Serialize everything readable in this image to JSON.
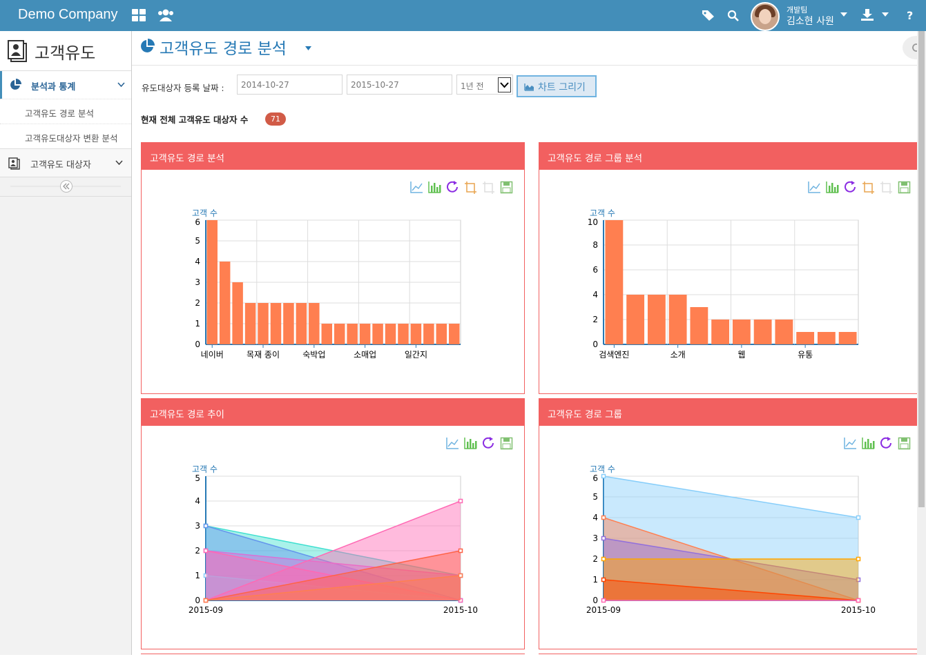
{
  "topbar": {
    "brand": "Demo Company",
    "user_team": "개발팀",
    "user_name": "김소현 사원"
  },
  "sidebar": {
    "title": "고객유도",
    "menu_main": "분석과 통계",
    "sub_items": [
      "고객유도 경로 분석",
      "고객유도대상자 변환 분석"
    ],
    "menu_2": "고객유도 대상자"
  },
  "main": {
    "page_title": "고객유도 경로 분석",
    "filter_label": "유도대상자 등록 날짜 :",
    "date_from": "2014-10-27",
    "date_to": "2015-10-27",
    "period": "1년 전",
    "draw_button": "차트 그리기",
    "count_label": "현재 전체 고객유도 대상자 수",
    "count_value": "71"
  },
  "panels": [
    {
      "title": "고객유도 경로 분석"
    },
    {
      "title": "고객유도 경로 그룹 분석"
    },
    {
      "title": "고객유도 경로 추이"
    },
    {
      "title": "고객유도 경로 그룹"
    }
  ],
  "chart_data": [
    {
      "type": "bar",
      "ylabel": "고객 수",
      "ylim": [
        0,
        6
      ],
      "yticks": [
        0,
        1,
        2,
        3,
        4,
        5,
        6
      ],
      "tick_labels": [
        "네이버",
        "목재 종이",
        "숙박업",
        "소매업",
        "일간지"
      ],
      "tick_label_at": [
        0,
        4,
        8,
        12,
        16
      ],
      "values": [
        6,
        4,
        3,
        2,
        2,
        2,
        2,
        2,
        2,
        1,
        1,
        1,
        1,
        1,
        1,
        1,
        1,
        1,
        1,
        1
      ],
      "color": "#ff7f50",
      "grid": true
    },
    {
      "type": "bar",
      "ylabel": "고객 수",
      "ylim": [
        0,
        10
      ],
      "yticks": [
        0,
        2,
        4,
        6,
        8,
        10
      ],
      "tick_labels": [
        "검색엔진",
        "소개",
        "웹",
        "유통"
      ],
      "tick_label_at": [
        0,
        3,
        6,
        9
      ],
      "values": [
        10,
        4,
        4,
        4,
        3,
        2,
        2,
        2,
        2,
        1,
        1,
        1
      ],
      "color": "#ff7f50",
      "grid": true
    },
    {
      "type": "area",
      "ylabel": "고객 수",
      "ylim": [
        0,
        5
      ],
      "yticks": [
        0,
        1,
        2,
        3,
        4,
        5
      ],
      "x": [
        "2015-09",
        "2015-10"
      ],
      "series": [
        {
          "values": [
            3,
            1
          ],
          "color": "#40e0d0"
        },
        {
          "values": [
            3,
            0
          ],
          "color": "#6495ed"
        },
        {
          "values": [
            2,
            1
          ],
          "color": "#da70d6"
        },
        {
          "values": [
            1,
            0
          ],
          "color": "#87cefa"
        },
        {
          "values": [
            2,
            0
          ],
          "color": "#ff69b4"
        },
        {
          "values": [
            0,
            4
          ],
          "color": "#ff69b4"
        },
        {
          "values": [
            0,
            2
          ],
          "color": "#ff6347"
        },
        {
          "values": [
            0,
            1
          ],
          "color": "#ff7f50"
        }
      ]
    },
    {
      "type": "area",
      "ylabel": "고객 수",
      "ylim": [
        0,
        6
      ],
      "yticks": [
        0,
        1,
        2,
        3,
        4,
        5,
        6
      ],
      "x": [
        "2015-09",
        "2015-10"
      ],
      "series": [
        {
          "values": [
            6,
            4
          ],
          "color": "#87cefa"
        },
        {
          "values": [
            4,
            0
          ],
          "color": "#ff7f50"
        },
        {
          "values": [
            3,
            1
          ],
          "color": "#9370db"
        },
        {
          "values": [
            2,
            2
          ],
          "color": "#ffa500"
        },
        {
          "values": [
            1,
            0
          ],
          "color": "#ff4500"
        },
        {
          "values": [
            0,
            0
          ],
          "color": "#ff69b4"
        }
      ]
    }
  ]
}
